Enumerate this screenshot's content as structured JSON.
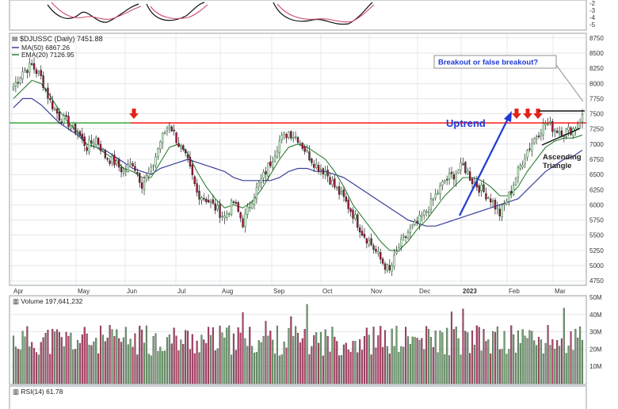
{
  "chart_data": {
    "type": "candlestick",
    "symbol_line": {
      "symbol": "$DJUSSC",
      "period": "(Daily)",
      "last": "7451.88"
    },
    "legend": [
      {
        "name": "MA(50)",
        "value": "6867.26",
        "color": "#3a3f9a"
      },
      {
        "name": "EMA(20)",
        "value": "7126.95",
        "color": "#2e7d32"
      }
    ],
    "price_axis": {
      "ticks": [
        "8750",
        "8500",
        "8250",
        "8000",
        "7750",
        "7500",
        "7250",
        "7000",
        "6750",
        "6500",
        "6250",
        "6000",
        "5750",
        "5500",
        "5250",
        "5000",
        "4750"
      ],
      "ylim": [
        4700,
        8800
      ]
    },
    "x_tick_labels": [
      {
        "label": "Apr",
        "bold": false
      },
      {
        "label": "May",
        "bold": false
      },
      {
        "label": "Jun",
        "bold": false
      },
      {
        "label": "Jul",
        "bold": false
      },
      {
        "label": "Aug",
        "bold": false
      },
      {
        "label": "Sep",
        "bold": false
      },
      {
        "label": "Oct",
        "bold": false
      },
      {
        "label": "Nov",
        "bold": false
      },
      {
        "label": "Dec",
        "bold": false
      },
      {
        "label": "2023",
        "bold": true
      },
      {
        "label": "Feb",
        "bold": false
      },
      {
        "label": "Mar",
        "bold": false
      }
    ],
    "price_anchors": {
      "close": [
        7950,
        8200,
        8300,
        8100,
        7700,
        7450,
        7350,
        7200,
        6950,
        7100,
        6800,
        6700,
        6550,
        6700,
        6350,
        6550,
        7050,
        7350,
        7000,
        6700,
        6200,
        6100,
        5950,
        5800,
        6050,
        5700,
        6100,
        6400,
        6700,
        7050,
        7200,
        7100,
        6850,
        6650,
        6550,
        6300,
        6100,
        5850,
        5550,
        5350,
        5100,
        4900,
        5300,
        5550,
        5700,
        5900,
        6150,
        6400,
        6500,
        6650,
        6400,
        6250,
        6100,
        5850,
        6150,
        6550,
        6900,
        7150,
        7350,
        7250,
        7200,
        7250,
        7450
      ],
      "dates_note": "weekly anchors interpolated to daily"
    },
    "ma50": [
      7600,
      7750,
      7750,
      7650,
      7500,
      7350,
      7250,
      7150,
      7000,
      6950,
      6900,
      6800,
      6700,
      6600,
      6550,
      6500,
      6600,
      6650,
      6700,
      6750,
      6700,
      6650,
      6600,
      6550,
      6450,
      6400,
      6400,
      6400,
      6400,
      6450,
      6550,
      6600,
      6600,
      6550,
      6550,
      6500,
      6450,
      6350,
      6250,
      6150,
      6050,
      5950,
      5850,
      5750,
      5700,
      5650,
      5650,
      5700,
      5750,
      5800,
      5850,
      5900,
      5950,
      6000,
      6050,
      6100,
      6250,
      6400,
      6550,
      6650,
      6750,
      6800,
      6900
    ],
    "ema20": [
      7750,
      7900,
      8050,
      8000,
      7800,
      7550,
      7350,
      7200,
      7000,
      6950,
      6850,
      6750,
      6600,
      6550,
      6450,
      6450,
      6700,
      6950,
      7000,
      6850,
      6550,
      6300,
      6100,
      5950,
      6000,
      5950,
      6050,
      6250,
      6500,
      6750,
      6950,
      7000,
      6950,
      6850,
      6750,
      6550,
      6300,
      6000,
      5800,
      5600,
      5400,
      5250,
      5250,
      5400,
      5600,
      5750,
      5950,
      6150,
      6300,
      6450,
      6450,
      6400,
      6300,
      6150,
      6150,
      6300,
      6550,
      6750,
      6950,
      7050,
      7100,
      7100,
      7150
    ],
    "horizontal_lines": [
      {
        "name": "resistance",
        "value": 7350,
        "color": "#ff0000"
      },
      {
        "name": "green-level",
        "value": 7350,
        "color": "#2e9d2e"
      }
    ],
    "annotations": {
      "breakout_box": "Breakout or false breakout?",
      "uptrend": "Uptrend",
      "ascending_triangle_line1": "Ascending",
      "ascending_triangle_line2": "Triangle"
    },
    "volume": {
      "label": "Volume",
      "value": "197,641,232",
      "ticks": [
        "50M",
        "40M",
        "30M",
        "20M",
        "10M"
      ],
      "ylim": [
        0,
        50
      ]
    },
    "rsi": {
      "label": "RSI(14)",
      "value": "61.78"
    },
    "top_panel_ticks": [
      "-2",
      "-3",
      "-4",
      "-5"
    ],
    "colors": {
      "up": "#2e7d32",
      "down": "#c0143c",
      "vol_up": "#6fa06f",
      "vol_down": "#b5406a",
      "ma50": "#3a3f9a",
      "ema20": "#2e7d32",
      "resistance": "#ff0000",
      "arrow": "#e0241b",
      "uptrend": "#1f3ad6",
      "grid": "#d6d9de"
    }
  }
}
